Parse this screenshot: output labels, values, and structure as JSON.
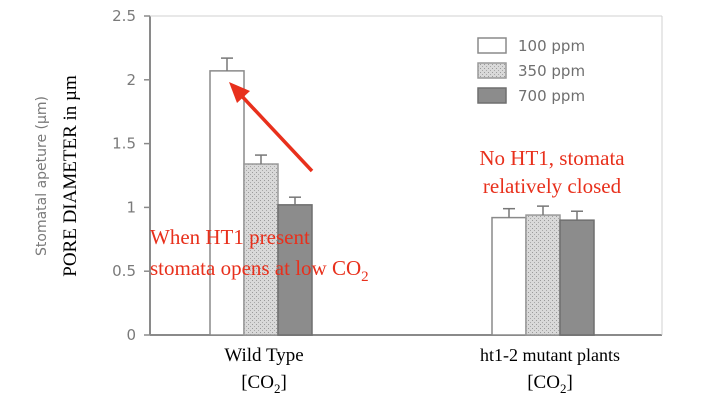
{
  "chart_data": {
    "type": "bar",
    "ylim": [
      0,
      2.5
    ],
    "yticks": [
      "0",
      "0.5",
      "1",
      "1.5",
      "2",
      "2.5"
    ],
    "ylabel_line1": "Stomatal apeture (µm)",
    "ylabel_line2": "PORE DIAMETER in µm",
    "categories": [
      {
        "name": "Wild Type",
        "sub": "[CO",
        "sub_index": "2",
        "sub_end": "]"
      },
      {
        "name": "ht1-2 mutant plants",
        "sub": "[CO",
        "sub_index": "2",
        "sub_end": "]"
      }
    ],
    "series": [
      {
        "name": "100 ppm",
        "values": [
          2.07,
          0.92
        ],
        "errors": [
          0.1,
          0.07
        ],
        "color": "#ffffff"
      },
      {
        "name": "350 ppm",
        "values": [
          1.34,
          0.94
        ],
        "errors": [
          0.07,
          0.07
        ],
        "color": "#cfcfcf"
      },
      {
        "name": "700 ppm",
        "values": [
          1.02,
          0.9
        ],
        "errors": [
          0.06,
          0.07
        ],
        "color": "#8c8c8c"
      }
    ],
    "annotations": {
      "wild_type_note": {
        "line1": "When HT1 present",
        "line2": "stomata opens at low CO",
        "line2_sub": "2",
        "color": "#e8301c"
      },
      "mutant_note": {
        "line1": "No HT1, stomata",
        "line2": "relatively closed",
        "color": "#e8301c"
      }
    }
  }
}
